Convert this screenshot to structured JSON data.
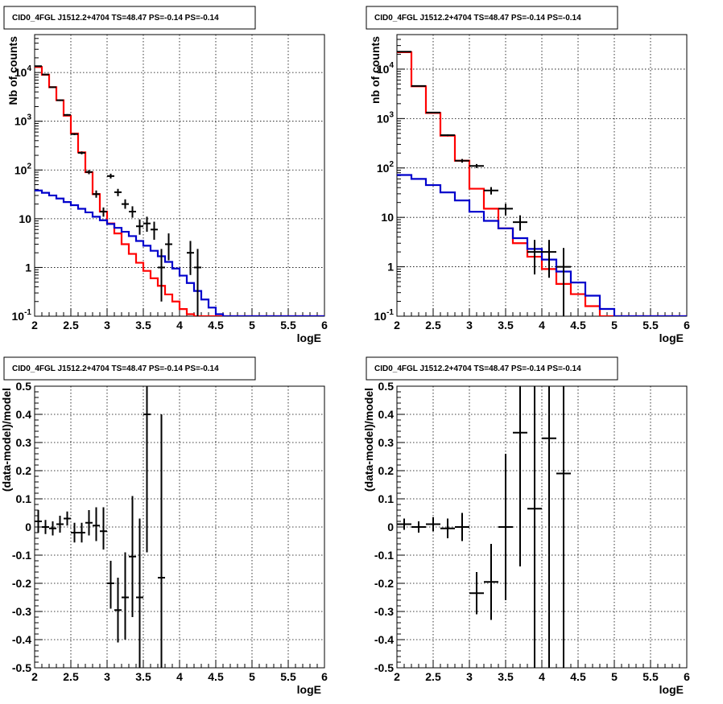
{
  "colors": {
    "total_model": "#ff0000",
    "background_model": "#0000cc",
    "data": "#000000",
    "grid": "#000000"
  },
  "chart_data": [
    {
      "type": "line",
      "title": "CID0_4FGL J1512.2+4704 TS=48.47 PS=-0.14 PS=-0.14",
      "xlabel": "logE",
      "ylabel": "Nb of counts",
      "yscale": "log",
      "xlim": [
        2,
        6
      ],
      "ylim": [
        0.1,
        60000
      ],
      "xticks": [
        "2",
        "2.5",
        "3",
        "3.5",
        "4",
        "4.5",
        "5",
        "5.5",
        "6"
      ],
      "yticks": [
        {
          "base": "10",
          "exp": "-1",
          "value": 0.1
        },
        {
          "base": "1",
          "exp": "",
          "value": 1
        },
        {
          "base": "10",
          "exp": "",
          "value": 10
        },
        {
          "base": "10",
          "exp": "2",
          "value": 100
        },
        {
          "base": "10",
          "exp": "3",
          "value": 1000
        },
        {
          "base": "10",
          "exp": "4",
          "value": 10000
        }
      ],
      "grid": true,
      "binwidth": 0.1,
      "series": [
        {
          "role": "total_model",
          "values": [
            13000,
            9000,
            5000,
            2700,
            1300,
            560,
            230,
            90,
            32,
            14,
            8,
            5,
            3,
            1.9,
            1.25,
            0.85,
            0.6,
            0.42,
            0.28,
            0.2,
            0.14,
            0.11,
            0.1,
            0.1,
            0.1,
            0.1,
            0.1,
            0.1,
            0.1,
            0.1,
            0.1,
            0.1,
            0.1,
            0.1,
            0.1,
            0.1,
            0.1,
            0.1,
            0.1,
            0.1
          ]
        },
        {
          "role": "background_model",
          "values": [
            38,
            34,
            30,
            26,
            22,
            19,
            16,
            13.5,
            11,
            9.3,
            7.8,
            6.5,
            5.4,
            4.4,
            3.5,
            2.8,
            2.2,
            1.7,
            1.3,
            0.95,
            0.68,
            0.48,
            0.33,
            0.22,
            0.15,
            0.11,
            0.1,
            0.1,
            0.1,
            0.1,
            0.1,
            0.1,
            0.1,
            0.1,
            0.1,
            0.1,
            0.1,
            0.1,
            0.1,
            0.1
          ]
        },
        {
          "role": "data",
          "points": [
            {
              "x": 2.05,
              "y": 13500,
              "lo": 13300,
              "hi": 13700
            },
            {
              "x": 2.15,
              "y": 9100,
              "lo": 8900,
              "hi": 9300
            },
            {
              "x": 2.25,
              "y": 5000,
              "lo": 4850,
              "hi": 5150
            },
            {
              "x": 2.35,
              "y": 2700,
              "lo": 2600,
              "hi": 2800
            },
            {
              "x": 2.45,
              "y": 1350,
              "lo": 1300,
              "hi": 1400
            },
            {
              "x": 2.55,
              "y": 545,
              "lo": 520,
              "hi": 570
            },
            {
              "x": 2.65,
              "y": 225,
              "lo": 210,
              "hi": 240
            },
            {
              "x": 2.75,
              "y": 91,
              "lo": 82,
              "hi": 100
            },
            {
              "x": 2.85,
              "y": 32,
              "lo": 27,
              "hi": 38
            },
            {
              "x": 2.95,
              "y": 14,
              "lo": 11,
              "hi": 17
            },
            {
              "x": 3.05,
              "y": 75,
              "lo": 67,
              "hi": 84
            },
            {
              "x": 3.15,
              "y": 35,
              "lo": 29,
              "hi": 41
            },
            {
              "x": 3.25,
              "y": 20,
              "lo": 16,
              "hi": 25
            },
            {
              "x": 3.35,
              "y": 14,
              "lo": 10.5,
              "hi": 18
            },
            {
              "x": 3.45,
              "y": 7,
              "lo": 4.7,
              "hi": 9.7
            },
            {
              "x": 3.55,
              "y": 8,
              "lo": 5.4,
              "hi": 11
            },
            {
              "x": 3.65,
              "y": 6,
              "lo": 3.7,
              "hi": 8.7
            },
            {
              "x": 3.75,
              "y": 1,
              "lo": 0.2,
              "hi": 2.4
            },
            {
              "x": 3.85,
              "y": 3,
              "lo": 1.4,
              "hi": 5
            },
            {
              "x": 4.15,
              "y": 2,
              "lo": 0.7,
              "hi": 3.5
            },
            {
              "x": 4.25,
              "y": 1,
              "lo": 0.1,
              "hi": 2.4
            }
          ]
        }
      ]
    },
    {
      "type": "line",
      "title": "CID0_4FGL J1512.2+4704 TS=48.47 PS=-0.14 PS=-0.14",
      "xlabel": "logE",
      "ylabel": "nb of counts",
      "yscale": "log",
      "xlim": [
        2,
        6
      ],
      "ylim": [
        0.1,
        50000
      ],
      "xticks": [
        "2",
        "2.5",
        "3",
        "3.5",
        "4",
        "4.5",
        "5",
        "5.5",
        "6"
      ],
      "yticks": [
        {
          "base": "10",
          "exp": "-1",
          "value": 0.1
        },
        {
          "base": "1",
          "exp": "",
          "value": 1
        },
        {
          "base": "10",
          "exp": "",
          "value": 10
        },
        {
          "base": "10",
          "exp": "2",
          "value": 100
        },
        {
          "base": "10",
          "exp": "3",
          "value": 1000
        },
        {
          "base": "10",
          "exp": "4",
          "value": 10000
        }
      ],
      "grid": true,
      "binwidth": 0.2,
      "series": [
        {
          "role": "total_model",
          "values": [
            22000,
            4500,
            1300,
            450,
            140,
            38,
            15,
            6,
            3,
            1.6,
            0.9,
            0.45,
            0.28,
            0.16,
            0.1,
            0.1,
            0.1,
            0.1,
            0.1,
            0.1
          ]
        },
        {
          "role": "background_model",
          "values": [
            72,
            60,
            45,
            32,
            22,
            13,
            8.5,
            6,
            3.8,
            2.3,
            1.4,
            0.8,
            0.48,
            0.26,
            0.14,
            0.1,
            0.1,
            0.1,
            0.1,
            0.1
          ]
        },
        {
          "role": "data",
          "points": [
            {
              "x": 2.1,
              "y": 22500,
              "lo": 22300,
              "hi": 22700
            },
            {
              "x": 2.3,
              "y": 4550,
              "lo": 4450,
              "hi": 4650
            },
            {
              "x": 2.5,
              "y": 1320,
              "lo": 1280,
              "hi": 1360
            },
            {
              "x": 2.7,
              "y": 460,
              "lo": 440,
              "hi": 480
            },
            {
              "x": 2.9,
              "y": 140,
              "lo": 128,
              "hi": 152
            },
            {
              "x": 3.1,
              "y": 110,
              "lo": 100,
              "hi": 120
            },
            {
              "x": 3.3,
              "y": 35,
              "lo": 29,
              "hi": 41
            },
            {
              "x": 3.5,
              "y": 15,
              "lo": 11,
              "hi": 19
            },
            {
              "x": 3.7,
              "y": 8,
              "lo": 5.4,
              "hi": 11
            },
            {
              "x": 3.9,
              "y": 2,
              "lo": 0.7,
              "hi": 3.5
            },
            {
              "x": 4.1,
              "y": 2,
              "lo": 0.6,
              "hi": 3.5
            },
            {
              "x": 4.3,
              "y": 1,
              "lo": 0.1,
              "hi": 2.4
            }
          ]
        }
      ]
    },
    {
      "type": "scatter",
      "title": "CID0_4FGL J1512.2+4704 TS=48.47 PS=-0.14 PS=-0.14",
      "xlabel": "logE",
      "ylabel": "(data-model)/model",
      "yscale": "linear",
      "xlim": [
        2,
        6
      ],
      "ylim": [
        -0.5,
        0.5
      ],
      "xticks": [
        "2",
        "2.5",
        "3",
        "3.5",
        "4",
        "4.5",
        "5",
        "5.5",
        "6"
      ],
      "yticks": [
        "-0.5",
        "-0.4",
        "-0.3",
        "-0.2",
        "-0.1",
        "0",
        "0.1",
        "0.2",
        "0.3",
        "0.4",
        "0.5"
      ],
      "grid": true,
      "binwidth": 0.1,
      "series": [
        {
          "role": "data",
          "points": [
            {
              "x": 2.05,
              "y": 0.02,
              "lo": -0.02,
              "hi": 0.06
            },
            {
              "x": 2.15,
              "y": 0.0,
              "lo": -0.025,
              "hi": 0.025
            },
            {
              "x": 2.25,
              "y": -0.005,
              "lo": -0.03,
              "hi": 0.02
            },
            {
              "x": 2.35,
              "y": 0.01,
              "lo": -0.02,
              "hi": 0.04
            },
            {
              "x": 2.45,
              "y": 0.03,
              "lo": 0.005,
              "hi": 0.055
            },
            {
              "x": 2.55,
              "y": -0.02,
              "lo": -0.055,
              "hi": 0.015
            },
            {
              "x": 2.65,
              "y": -0.02,
              "lo": -0.055,
              "hi": 0.015
            },
            {
              "x": 2.75,
              "y": 0.015,
              "lo": -0.03,
              "hi": 0.06
            },
            {
              "x": 2.85,
              "y": 0.005,
              "lo": -0.05,
              "hi": 0.07
            },
            {
              "x": 2.95,
              "y": -0.015,
              "lo": -0.08,
              "hi": 0.07
            },
            {
              "x": 3.05,
              "y": -0.2,
              "lo": -0.29,
              "hi": -0.12
            },
            {
              "x": 3.15,
              "y": -0.295,
              "lo": -0.41,
              "hi": -0.18
            },
            {
              "x": 3.25,
              "y": -0.25,
              "lo": -0.4,
              "hi": -0.09
            },
            {
              "x": 3.35,
              "y": -0.105,
              "lo": -0.32,
              "hi": 0.11
            },
            {
              "x": 3.45,
              "y": -0.25,
              "lo": -0.5,
              "hi": 0.03
            },
            {
              "x": 3.55,
              "y": 0.4,
              "lo": -0.09,
              "hi": 0.5
            },
            {
              "x": 3.75,
              "y": -0.18,
              "lo": -0.5,
              "hi": 0.4
            }
          ]
        }
      ]
    },
    {
      "type": "scatter",
      "title": "CID0_4FGL J1512.2+4704 TS=48.47 PS=-0.14 PS=-0.14",
      "xlabel": "logE",
      "ylabel": "(data-model)/model",
      "yscale": "linear",
      "xlim": [
        2,
        6
      ],
      "ylim": [
        -0.5,
        0.5
      ],
      "xticks": [
        "2",
        "2.5",
        "3",
        "3.5",
        "4",
        "4.5",
        "5",
        "5.5",
        "6"
      ],
      "yticks": [
        "-0.5",
        "-0.4",
        "-0.3",
        "-0.2",
        "-0.1",
        "0",
        "0.1",
        "0.2",
        "0.3",
        "0.4",
        "0.5"
      ],
      "grid": true,
      "binwidth": 0.2,
      "series": [
        {
          "role": "data",
          "points": [
            {
              "x": 2.1,
              "y": 0.01,
              "lo": -0.01,
              "hi": 0.03
            },
            {
              "x": 2.3,
              "y": 0.0,
              "lo": -0.02,
              "hi": 0.02
            },
            {
              "x": 2.5,
              "y": 0.01,
              "lo": -0.015,
              "hi": 0.035
            },
            {
              "x": 2.7,
              "y": -0.005,
              "lo": -0.04,
              "hi": 0.03
            },
            {
              "x": 2.9,
              "y": 0.0,
              "lo": -0.05,
              "hi": 0.05
            },
            {
              "x": 3.1,
              "y": -0.235,
              "lo": -0.31,
              "hi": -0.16
            },
            {
              "x": 3.3,
              "y": -0.195,
              "lo": -0.33,
              "hi": -0.06
            },
            {
              "x": 3.5,
              "y": 0.0,
              "lo": -0.26,
              "hi": 0.26
            },
            {
              "x": 3.7,
              "y": 0.335,
              "lo": -0.14,
              "hi": 0.5
            },
            {
              "x": 3.9,
              "y": 0.065,
              "lo": -0.5,
              "hi": 0.5
            },
            {
              "x": 4.1,
              "y": 0.315,
              "lo": -0.5,
              "hi": 0.5
            },
            {
              "x": 4.3,
              "y": 0.19,
              "lo": -0.5,
              "hi": 0.5
            }
          ]
        }
      ]
    }
  ]
}
